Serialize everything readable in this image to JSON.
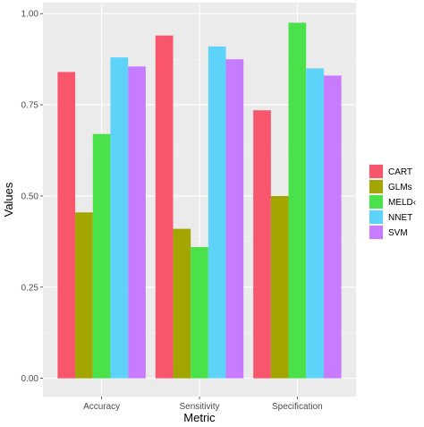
{
  "chart_data": {
    "type": "bar",
    "xlabel": "Metric",
    "ylabel": "Values",
    "categories": [
      "Accuracy",
      "Sensitivity",
      "Specification"
    ],
    "ylim": [
      0,
      1.0
    ],
    "yticks": [
      "0.00",
      "0.25",
      "0.50",
      "0.75",
      "1.00"
    ],
    "ytick_values": [
      0,
      0.25,
      0.5,
      0.75,
      1.0
    ],
    "grid": true,
    "legend_position": "right",
    "series": [
      {
        "name": "CART",
        "color": "#F8566D",
        "values": [
          0.84,
          0.94,
          0.735
        ]
      },
      {
        "name": "GLMs",
        "color": "#A3A500",
        "values": [
          0.455,
          0.41,
          0.5
        ]
      },
      {
        "name": "MELD",
        "color": "#4BE14B",
        "values": [
          0.67,
          0.36,
          0.975
        ]
      },
      {
        "name": "NNET",
        "color": "#5ED3FA",
        "values": [
          0.88,
          0.91,
          0.85
        ]
      },
      {
        "name": "SVM",
        "color": "#C77CFF",
        "values": [
          0.855,
          0.875,
          0.83
        ]
      }
    ],
    "legend_labels": [
      "CART",
      "GLMs",
      "MELD‹",
      "NNET",
      "SVM"
    ]
  },
  "style": {
    "panel_background": "#EBEBEB",
    "grid_major": "#FFFFFF",
    "grid_minor": "#F5F5F5"
  }
}
